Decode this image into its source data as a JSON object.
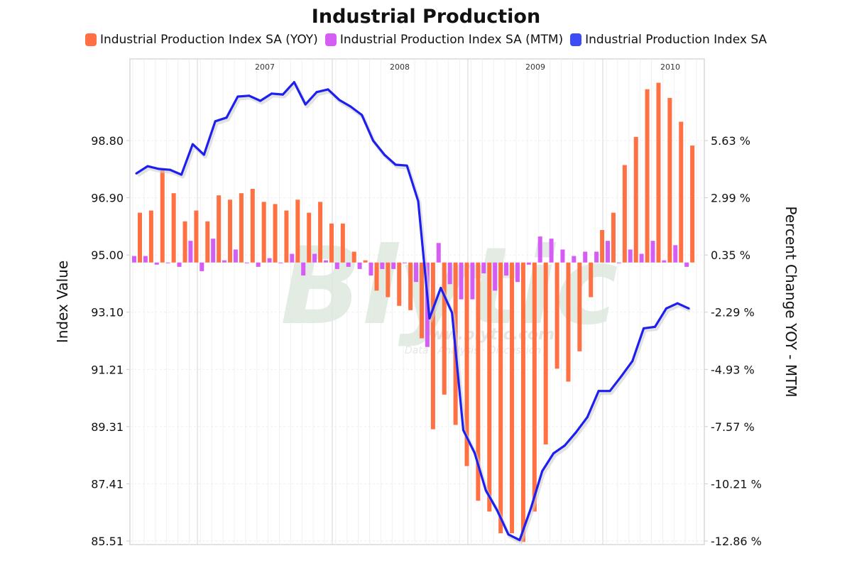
{
  "chart_data": {
    "type": "bar",
    "title": "Industrial Production",
    "legend_position": "top",
    "legend": [
      {
        "name": "Industrial Production Index SA (YOY)",
        "color": "#ff7043",
        "kind": "bar",
        "axis": "right"
      },
      {
        "name": "Industrial Production Index SA (MTM)",
        "color": "#d55cf5",
        "kind": "bar",
        "axis": "right"
      },
      {
        "name": "Industrial Production Index SA",
        "color": "#1d1ff0",
        "kind": "line",
        "axis": "left"
      }
    ],
    "x_start": "2006-07",
    "x_period": "monthly",
    "x_year_labels": [
      "2007",
      "2008",
      "2009",
      "2010"
    ],
    "left_axis": {
      "label": "Index Value",
      "ticks": [
        "98.80",
        "96.90",
        "95.00",
        "93.10",
        "91.21",
        "89.31",
        "87.41",
        "85.51"
      ],
      "range": [
        85.51,
        98.8
      ]
    },
    "right_axis": {
      "label": "Percent Change YOY - MTM",
      "ticks": [
        "5.63 %",
        "2.99 %",
        "0.35 %",
        "-2.29 %",
        "-4.93 %",
        "-7.57 %",
        "-10.21 %",
        "-12.86 %"
      ],
      "range": [
        -12.86,
        5.63
      ]
    },
    "grid": true,
    "series": [
      {
        "name": "Industrial Production Index SA (YOY)",
        "values": [
          2.3,
          2.4,
          4.3,
          3.2,
          1.9,
          2.4,
          1.9,
          3.1,
          2.9,
          3.2,
          3.4,
          2.8,
          2.7,
          2.4,
          2.9,
          2.3,
          2.8,
          1.8,
          1.8,
          0.5,
          0.1,
          -1.3,
          -1.6,
          -2.0,
          -2.2,
          -3.5,
          -7.7,
          -6.1,
          -7.5,
          -9.4,
          -11.0,
          -11.5,
          -12.5,
          -12.5,
          -12.9,
          -11.5,
          -8.4,
          -4.9,
          -5.5,
          -4.1,
          -1.6,
          1.5,
          2.3,
          4.5,
          5.8,
          8.0,
          8.3,
          7.6,
          6.5,
          5.4
        ]
      },
      {
        "name": "Industrial Production Index SA (MTM)",
        "values": [
          0.3,
          0.3,
          -0.1,
          0.0,
          -0.2,
          1.0,
          -0.4,
          1.1,
          0.1,
          0.6,
          0.0,
          -0.2,
          0.2,
          0.0,
          0.4,
          -0.6,
          0.4,
          0.1,
          -0.3,
          -0.2,
          -0.3,
          -0.6,
          -0.3,
          -0.3,
          0.0,
          -0.9,
          -3.9,
          0.9,
          -1.0,
          -1.7,
          -1.7,
          -0.5,
          -1.3,
          -0.6,
          -0.9,
          -0.1,
          1.2,
          1.1,
          0.6,
          0.3,
          0.5,
          0.5,
          1.0,
          0.0,
          0.6,
          0.4,
          1.0,
          0.1,
          0.8,
          -0.2
        ]
      },
      {
        "name": "Industrial Production Index SA",
        "values": [
          97.71,
          97.95,
          97.86,
          97.83,
          97.67,
          98.68,
          98.33,
          99.44,
          99.56,
          100.26,
          100.29,
          100.12,
          100.36,
          100.33,
          100.74,
          100.0,
          100.41,
          100.5,
          100.15,
          99.93,
          99.65,
          98.8,
          98.33,
          98.0,
          97.97,
          96.79,
          92.9,
          93.91,
          93.09,
          89.19,
          88.44,
          87.19,
          86.53,
          85.73,
          85.54,
          86.6,
          87.83,
          88.42,
          88.68,
          89.12,
          89.62,
          90.49,
          90.49,
          90.97,
          91.48,
          92.57,
          92.62,
          93.23,
          93.4,
          93.23
        ]
      }
    ],
    "watermark": {
      "text": "Blytic",
      "url_text": "www.blytic.com",
      "tagline": "Data · Analysis · Discussion"
    }
  }
}
